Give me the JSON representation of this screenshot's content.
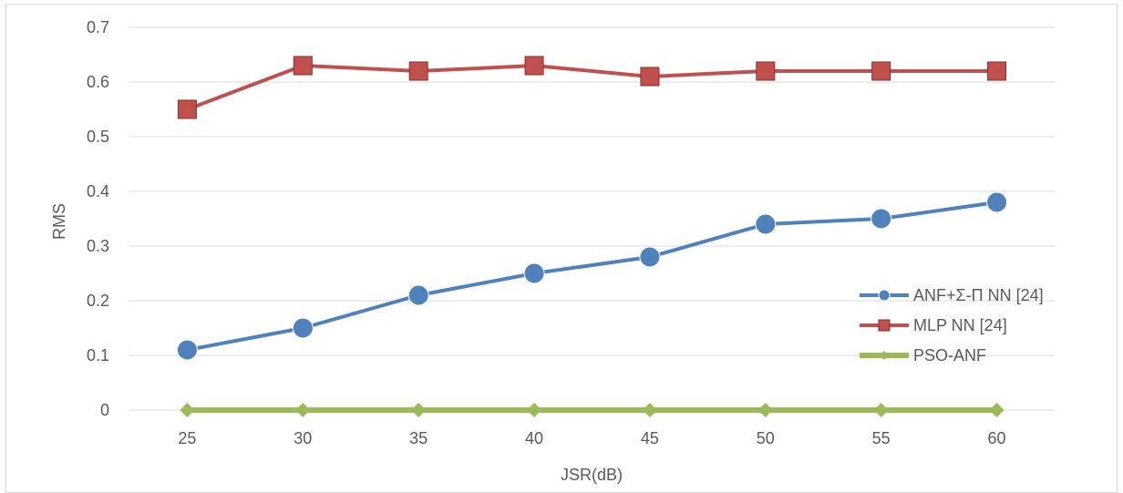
{
  "chart_data": {
    "type": "line",
    "title": "",
    "xlabel": "JSR(dB)",
    "ylabel": "RMS",
    "categories": [
      "25",
      "30",
      "35",
      "40",
      "45",
      "50",
      "55",
      "60"
    ],
    "ylim": [
      0,
      0.7
    ],
    "yticks": [
      "0",
      "0.1",
      "0.2",
      "0.3",
      "0.4",
      "0.5",
      "0.6",
      "0.7"
    ],
    "grid": true,
    "legend_position": "right",
    "series": [
      {
        "name": "ANF+Σ-Π NN [24]",
        "values": [
          0.11,
          0.15,
          0.21,
          0.25,
          0.28,
          0.34,
          0.35,
          0.38
        ],
        "color": "#4f81bd",
        "marker": "circle"
      },
      {
        "name": "MLP NN [24]",
        "values": [
          0.55,
          0.63,
          0.62,
          0.63,
          0.61,
          0.62,
          0.62,
          0.62
        ],
        "color": "#c0504d",
        "marker": "square"
      },
      {
        "name": "PSO-ANF",
        "values": [
          0,
          0,
          0,
          0,
          0,
          0,
          0,
          0
        ],
        "color": "#9bbb59",
        "marker": "diamond"
      }
    ]
  }
}
